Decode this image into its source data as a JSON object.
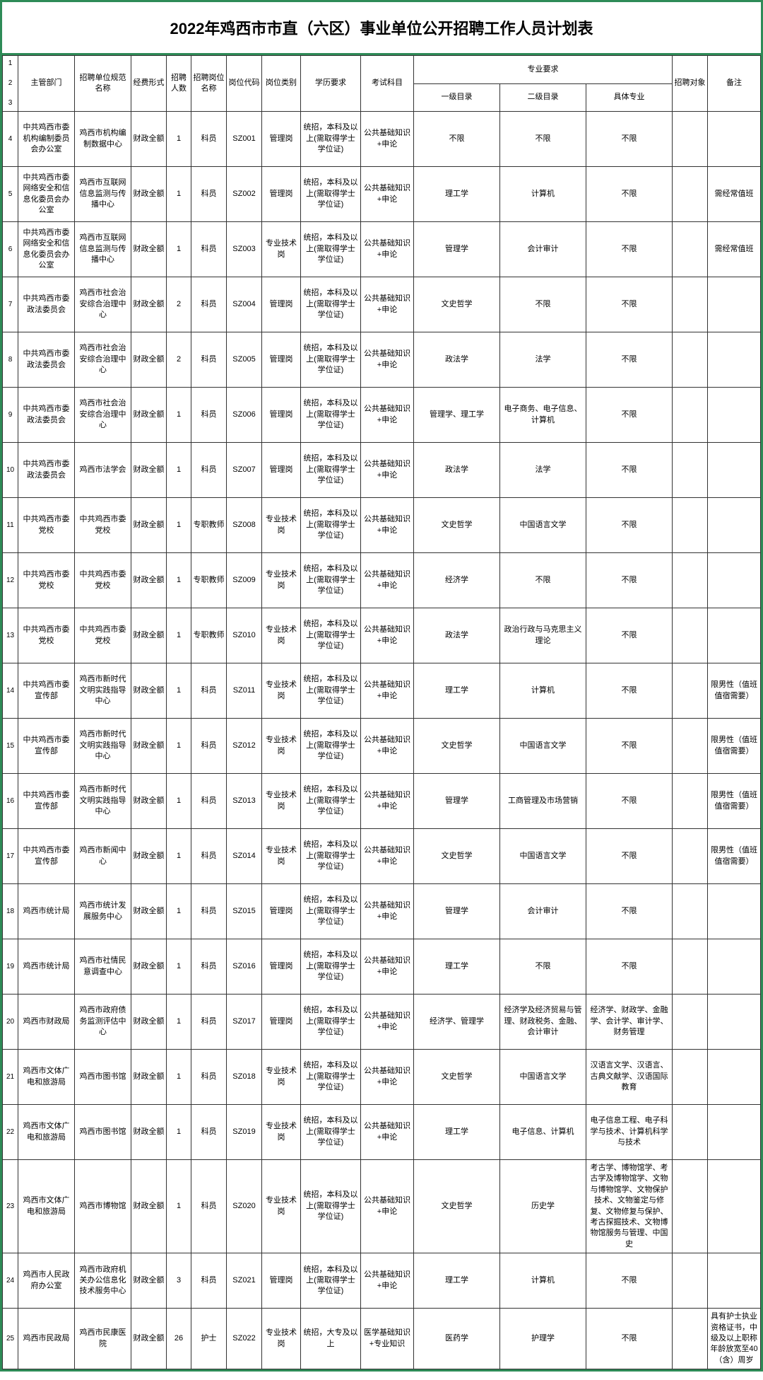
{
  "title": "2022年鸡西市市直（六区）事业单位公开招聘工作人员计划表",
  "headers": {
    "dept": "主管部门",
    "unit": "招聘单位规范名称",
    "fund": "经费形式",
    "count": "招聘人数",
    "posname": "招聘岗位名称",
    "code": "岗位代码",
    "type": "岗位类别",
    "edu": "学历要求",
    "exam": "考试科目",
    "major": "专业要求",
    "cat1": "一级目录",
    "cat2": "二级目录",
    "spec": "具体专业",
    "target": "招聘对象",
    "remark": "备注"
  },
  "rows": [
    {
      "n": "4",
      "dept": "中共鸡西市委机构编制委员会办公室",
      "unit": "鸡西市机构编制数据中心",
      "fund": "财政全额",
      "count": "1",
      "posname": "科员",
      "code": "SZ001",
      "type": "管理岗",
      "edu": "统招，本科及以上(需取得学士学位证)",
      "exam": "公共基础知识+申论",
      "cat1": "不限",
      "cat2": "不限",
      "spec": "不限",
      "target": "",
      "remark": ""
    },
    {
      "n": "5",
      "dept": "中共鸡西市委网络安全和信息化委员会办公室",
      "unit": "鸡西市互联网信息监测与传播中心",
      "fund": "财政全额",
      "count": "1",
      "posname": "科员",
      "code": "SZ002",
      "type": "管理岗",
      "edu": "统招，本科及以上(需取得学士学位证)",
      "exam": "公共基础知识+申论",
      "cat1": "理工学",
      "cat2": "计算机",
      "spec": "不限",
      "target": "",
      "remark": "需经常值班"
    },
    {
      "n": "6",
      "dept": "中共鸡西市委网络安全和信息化委员会办公室",
      "unit": "鸡西市互联网信息监测与传播中心",
      "fund": "财政全额",
      "count": "1",
      "posname": "科员",
      "code": "SZ003",
      "type": "专业技术岗",
      "edu": "统招，本科及以上(需取得学士学位证)",
      "exam": "公共基础知识+申论",
      "cat1": "管理学",
      "cat2": "会计审计",
      "spec": "不限",
      "target": "",
      "remark": "需经常值班"
    },
    {
      "n": "7",
      "dept": "中共鸡西市委政法委员会",
      "unit": "鸡西市社会治安综合治理中心",
      "fund": "财政全额",
      "count": "2",
      "posname": "科员",
      "code": "SZ004",
      "type": "管理岗",
      "edu": "统招，本科及以上(需取得学士学位证)",
      "exam": "公共基础知识+申论",
      "cat1": "文史哲学",
      "cat2": "不限",
      "spec": "不限",
      "target": "",
      "remark": ""
    },
    {
      "n": "8",
      "dept": "中共鸡西市委政法委员会",
      "unit": "鸡西市社会治安综合治理中心",
      "fund": "财政全额",
      "count": "2",
      "posname": "科员",
      "code": "SZ005",
      "type": "管理岗",
      "edu": "统招，本科及以上(需取得学士学位证)",
      "exam": "公共基础知识+申论",
      "cat1": "政法学",
      "cat2": "法学",
      "spec": "不限",
      "target": "",
      "remark": ""
    },
    {
      "n": "9",
      "dept": "中共鸡西市委政法委员会",
      "unit": "鸡西市社会治安综合治理中心",
      "fund": "财政全额",
      "count": "1",
      "posname": "科员",
      "code": "SZ006",
      "type": "管理岗",
      "edu": "统招，本科及以上(需取得学士学位证)",
      "exam": "公共基础知识+申论",
      "cat1": "管理学、理工学",
      "cat2": "电子商务、电子信息、计算机",
      "spec": "不限",
      "target": "",
      "remark": ""
    },
    {
      "n": "10",
      "dept": "中共鸡西市委政法委员会",
      "unit": "鸡西市法学会",
      "fund": "财政全额",
      "count": "1",
      "posname": "科员",
      "code": "SZ007",
      "type": "管理岗",
      "edu": "统招，本科及以上(需取得学士学位证)",
      "exam": "公共基础知识+申论",
      "cat1": "政法学",
      "cat2": "法学",
      "spec": "不限",
      "target": "",
      "remark": ""
    },
    {
      "n": "11",
      "dept": "中共鸡西市委党校",
      "unit": "中共鸡西市委党校",
      "fund": "财政全额",
      "count": "1",
      "posname": "专职教师",
      "code": "SZ008",
      "type": "专业技术岗",
      "edu": "统招，本科及以上(需取得学士学位证)",
      "exam": "公共基础知识+申论",
      "cat1": "文史哲学",
      "cat2": "中国语言文学",
      "spec": "不限",
      "target": "",
      "remark": ""
    },
    {
      "n": "12",
      "dept": "中共鸡西市委党校",
      "unit": "中共鸡西市委党校",
      "fund": "财政全额",
      "count": "1",
      "posname": "专职教师",
      "code": "SZ009",
      "type": "专业技术岗",
      "edu": "统招，本科及以上(需取得学士学位证)",
      "exam": "公共基础知识+申论",
      "cat1": "经济学",
      "cat2": "不限",
      "spec": "不限",
      "target": "",
      "remark": ""
    },
    {
      "n": "13",
      "dept": "中共鸡西市委党校",
      "unit": "中共鸡西市委党校",
      "fund": "财政全额",
      "count": "1",
      "posname": "专职教师",
      "code": "SZ010",
      "type": "专业技术岗",
      "edu": "统招，本科及以上(需取得学士学位证)",
      "exam": "公共基础知识+申论",
      "cat1": "政法学",
      "cat2": "政治行政与马克思主义理论",
      "spec": "不限",
      "target": "",
      "remark": ""
    },
    {
      "n": "14",
      "dept": "中共鸡西市委宣传部",
      "unit": "鸡西市新时代文明实践指导中心",
      "fund": "财政全额",
      "count": "1",
      "posname": "科员",
      "code": "SZ011",
      "type": "专业技术岗",
      "edu": "统招，本科及以上(需取得学士学位证)",
      "exam": "公共基础知识+申论",
      "cat1": "理工学",
      "cat2": "计算机",
      "spec": "不限",
      "target": "",
      "remark": "限男性（值班值宿需要）"
    },
    {
      "n": "15",
      "dept": "中共鸡西市委宣传部",
      "unit": "鸡西市新时代文明实践指导中心",
      "fund": "财政全额",
      "count": "1",
      "posname": "科员",
      "code": "SZ012",
      "type": "专业技术岗",
      "edu": "统招，本科及以上(需取得学士学位证)",
      "exam": "公共基础知识+申论",
      "cat1": "文史哲学",
      "cat2": "中国语言文学",
      "spec": "不限",
      "target": "",
      "remark": "限男性（值班值宿需要）"
    },
    {
      "n": "16",
      "dept": "中共鸡西市委宣传部",
      "unit": "鸡西市新时代文明实践指导中心",
      "fund": "财政全额",
      "count": "1",
      "posname": "科员",
      "code": "SZ013",
      "type": "专业技术岗",
      "edu": "统招，本科及以上(需取得学士学位证)",
      "exam": "公共基础知识+申论",
      "cat1": "管理学",
      "cat2": "工商管理及市场营销",
      "spec": "不限",
      "target": "",
      "remark": "限男性（值班值宿需要）"
    },
    {
      "n": "17",
      "dept": "中共鸡西市委宣传部",
      "unit": "鸡西市新闻中心",
      "fund": "财政全额",
      "count": "1",
      "posname": "科员",
      "code": "SZ014",
      "type": "专业技术岗",
      "edu": "统招，本科及以上(需取得学士学位证)",
      "exam": "公共基础知识+申论",
      "cat1": "文史哲学",
      "cat2": "中国语言文学",
      "spec": "不限",
      "target": "",
      "remark": "限男性（值班值宿需要）"
    },
    {
      "n": "18",
      "dept": "鸡西市统计局",
      "unit": "鸡西市统计发展服务中心",
      "fund": "财政全额",
      "count": "1",
      "posname": "科员",
      "code": "SZ015",
      "type": "管理岗",
      "edu": "统招，本科及以上(需取得学士学位证)",
      "exam": "公共基础知识+申论",
      "cat1": "管理学",
      "cat2": "会计审计",
      "spec": "不限",
      "target": "",
      "remark": ""
    },
    {
      "n": "19",
      "dept": "鸡西市统计局",
      "unit": "鸡西市社情民意调查中心",
      "fund": "财政全额",
      "count": "1",
      "posname": "科员",
      "code": "SZ016",
      "type": "管理岗",
      "edu": "统招，本科及以上(需取得学士学位证)",
      "exam": "公共基础知识+申论",
      "cat1": "理工学",
      "cat2": "不限",
      "spec": "不限",
      "target": "",
      "remark": ""
    },
    {
      "n": "20",
      "dept": "鸡西市财政局",
      "unit": "鸡西市政府债务监测评估中心",
      "fund": "财政全额",
      "count": "1",
      "posname": "科员",
      "code": "SZ017",
      "type": "管理岗",
      "edu": "统招，本科及以上(需取得学士学位证)",
      "exam": "公共基础知识+申论",
      "cat1": "经济学、管理学",
      "cat2": "经济学及经济贸易与管理、财政税务、金融、会计审计",
      "spec": "经济学、财政学、金融学、会计学、审计学、财务管理",
      "target": "",
      "remark": ""
    },
    {
      "n": "21",
      "dept": "鸡西市文体广电和旅游局",
      "unit": "鸡西市图书馆",
      "fund": "财政全额",
      "count": "1",
      "posname": "科员",
      "code": "SZ018",
      "type": "专业技术岗",
      "edu": "统招，本科及以上(需取得学士学位证)",
      "exam": "公共基础知识+申论",
      "cat1": "文史哲学",
      "cat2": "中国语言文学",
      "spec": "汉语言文学、汉语言、古典文献学、汉语国际教育",
      "target": "",
      "remark": ""
    },
    {
      "n": "22",
      "dept": "鸡西市文体广电和旅游局",
      "unit": "鸡西市图书馆",
      "fund": "财政全额",
      "count": "1",
      "posname": "科员",
      "code": "SZ019",
      "type": "专业技术岗",
      "edu": "统招，本科及以上(需取得学士学位证)",
      "exam": "公共基础知识+申论",
      "cat1": "理工学",
      "cat2": "电子信息、计算机",
      "spec": "电子信息工程、电子科学与技术、计算机科学与技术",
      "target": "",
      "remark": ""
    },
    {
      "n": "23",
      "dept": "鸡西市文体广电和旅游局",
      "unit": "鸡西市博物馆",
      "fund": "财政全额",
      "count": "1",
      "posname": "科员",
      "code": "SZ020",
      "type": "专业技术岗",
      "edu": "统招，本科及以上(需取得学士学位证)",
      "exam": "公共基础知识+申论",
      "cat1": "文史哲学",
      "cat2": "历史学",
      "spec": "考古学、博物馆学、考古学及博物馆学、文物与博物馆学、文物保护技术、文物鉴定与修复、文物修复与保护、考古探掘技术、文物博物馆服务与管理、中国史",
      "target": "",
      "remark": ""
    },
    {
      "n": "24",
      "dept": "鸡西市人民政府办公室",
      "unit": "鸡西市政府机关办公信息化技术服务中心",
      "fund": "财政全额",
      "count": "3",
      "posname": "科员",
      "code": "SZ021",
      "type": "管理岗",
      "edu": "统招，本科及以上(需取得学士学位证)",
      "exam": "公共基础知识+申论",
      "cat1": "理工学",
      "cat2": "计算机",
      "spec": "不限",
      "target": "",
      "remark": ""
    },
    {
      "n": "25",
      "dept": "鸡西市民政局",
      "unit": "鸡西市民康医院",
      "fund": "财政全额",
      "count": "26",
      "posname": "护士",
      "code": "SZ022",
      "type": "专业技术岗",
      "edu": "统招，大专及以上",
      "exam": "医学基础知识+专业知识",
      "cat1": "医药学",
      "cat2": "护理学",
      "spec": "不限",
      "target": "",
      "remark": "具有护士执业资格证书，中级及以上职称年龄放宽至40（含）周岁"
    }
  ]
}
